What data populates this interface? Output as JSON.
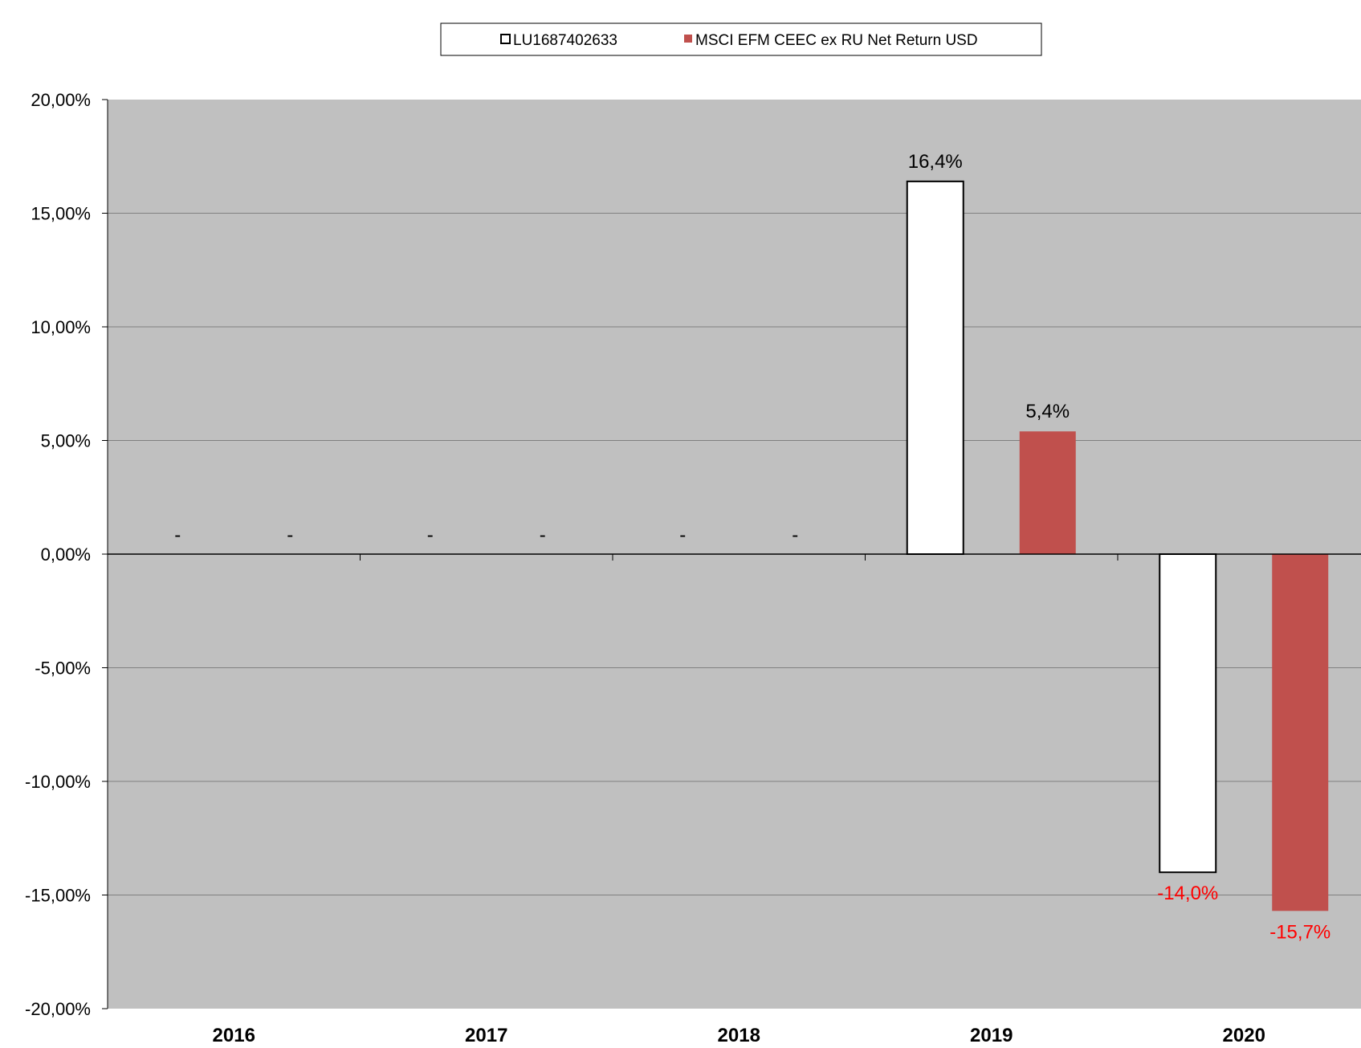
{
  "chart_data": {
    "type": "bar",
    "categories": [
      "2016",
      "2017",
      "2018",
      "2019",
      "2020"
    ],
    "series": [
      {
        "name": "LU1687402633",
        "color": "#ffffff",
        "stroke": "#000000",
        "values": [
          null,
          null,
          null,
          16.4,
          -14.0
        ],
        "labels": [
          "-",
          "-",
          "-",
          "16,4%",
          "-14,0%"
        ]
      },
      {
        "name": "MSCI EFM CEEC ex RU Net Return USD",
        "color": "#c0504d",
        "stroke": "none",
        "values": [
          null,
          null,
          null,
          5.4,
          -15.7
        ],
        "labels": [
          "-",
          "-",
          "-",
          "5,4%",
          "-15,7%"
        ]
      }
    ],
    "ylim": [
      -20,
      20
    ],
    "yticks": [
      20,
      15,
      10,
      5,
      0,
      -5,
      -10,
      -15,
      -20
    ],
    "ytick_labels": [
      "20,00%",
      "15,00%",
      "10,00%",
      "5,00%",
      "0,00%",
      "-5,00%",
      "-10,00%",
      "-15,00%",
      "-20,00%"
    ],
    "xlabel": "",
    "ylabel": "",
    "grid": true,
    "legend_position": "top-center",
    "plot_background": "#c0c0c0",
    "positive_label_color": "#000000",
    "negative_label_color": "#ff0000"
  }
}
